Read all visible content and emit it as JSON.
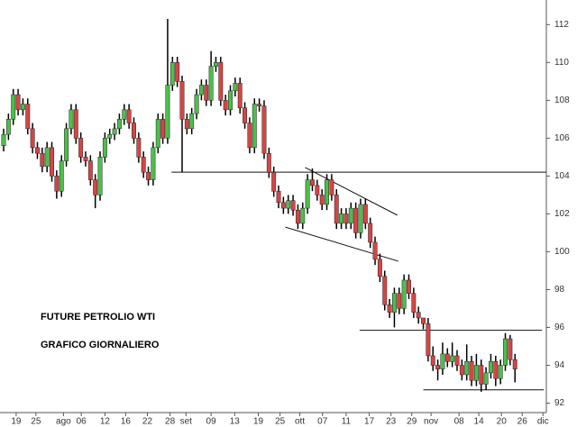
{
  "chart_data": {
    "type": "candlestick",
    "annotations": [
      "FUTURE PETROLIO WTI",
      "GRAFICO GIORNALIERO"
    ],
    "up_color": "#4cbf4c",
    "down_color": "#d64545",
    "xlim": [
      -0.75,
      112.5
    ],
    "ylim": [
      91.5,
      113.3
    ],
    "yticks": [
      92,
      94,
      96,
      98,
      100,
      102,
      104,
      106,
      108,
      110,
      112
    ],
    "xticks": [
      {
        "value": 2.6,
        "label": "19"
      },
      {
        "value": 6.7,
        "label": "25"
      },
      {
        "value": 12.4,
        "label": "ago"
      },
      {
        "value": 16.1,
        "label": "06"
      },
      {
        "value": 21,
        "label": "12"
      },
      {
        "value": 25.3,
        "label": "16"
      },
      {
        "value": 29.8,
        "label": "22"
      },
      {
        "value": 34.5,
        "label": "28"
      },
      {
        "value": 37.8,
        "label": "set"
      },
      {
        "value": 43,
        "label": "09"
      },
      {
        "value": 47.9,
        "label": "13"
      },
      {
        "value": 52.8,
        "label": "19"
      },
      {
        "value": 57.3,
        "label": "25"
      },
      {
        "value": 61.4,
        "label": "ott"
      },
      {
        "value": 66.1,
        "label": "07"
      },
      {
        "value": 71,
        "label": "11"
      },
      {
        "value": 75.8,
        "label": "17"
      },
      {
        "value": 80.3,
        "label": "23"
      },
      {
        "value": 84.6,
        "label": "29"
      },
      {
        "value": 88.6,
        "label": "nov"
      },
      {
        "value": 94.4,
        "label": "08"
      },
      {
        "value": 98.5,
        "label": "14"
      },
      {
        "value": 103.2,
        "label": "20"
      },
      {
        "value": 107.5,
        "label": "26"
      },
      {
        "value": 111.8,
        "label": "dic"
      }
    ],
    "open": [
      105.6,
      106.2,
      107,
      108.3,
      107.5,
      107.8,
      106.5,
      105.5,
      105.2,
      104.5,
      105.5,
      104,
      103.2,
      104.8,
      106.5,
      107.5,
      106,
      105,
      104.8,
      103.8,
      103,
      105,
      106,
      106.2,
      106.5,
      107,
      107.5,
      106.8,
      106,
      105,
      104.2,
      103.8,
      105.5,
      107,
      106,
      108.8,
      110,
      109,
      107,
      106.5,
      107.3,
      108.3,
      108.8,
      108,
      109.8,
      110,
      108,
      107.5,
      108.5,
      108.9,
      107.6,
      106.8,
      105.5,
      107.8,
      107.7,
      105.2,
      104.2,
      103.2,
      102.6,
      102.3,
      102.7,
      102.2,
      101.5,
      102.3,
      103.8,
      103.5,
      103,
      102.5,
      103.8,
      103,
      101.5,
      102,
      101.5,
      102.3,
      101,
      102.5,
      101.5,
      100.5,
      99.6,
      98.7,
      97.2,
      96.8,
      97.8,
      97,
      98.5,
      97.8,
      96.8,
      96.5,
      96.2,
      94.5,
      94,
      93.8,
      94.6,
      94.2,
      94.5,
      94,
      93.5,
      94.2,
      93.2,
      94,
      93,
      93.6,
      94.2,
      93.3,
      94,
      95.4,
      94.3
    ],
    "high": [
      106.5,
      107.3,
      108.6,
      108.6,
      108.1,
      108.1,
      106.8,
      105.8,
      105.5,
      105.8,
      105.8,
      104.3,
      105.1,
      106.8,
      107.8,
      107.8,
      106.3,
      105.3,
      105.1,
      104.1,
      105.3,
      106.3,
      106.5,
      106.8,
      107.3,
      107.8,
      107.8,
      107.1,
      106.3,
      105.3,
      104.5,
      105.8,
      107.3,
      107.3,
      112.3,
      110.3,
      110.3,
      109.3,
      107.3,
      107.6,
      108.6,
      109.1,
      109.1,
      110.6,
      110.3,
      110.3,
      108.3,
      108.8,
      109.2,
      109.2,
      107.9,
      107.1,
      108.1,
      108.1,
      108,
      105.5,
      104.5,
      103.5,
      102.9,
      103,
      103,
      102.5,
      102.6,
      104.1,
      104.4,
      103.8,
      103.3,
      104.1,
      104.1,
      103.3,
      102.3,
      102.3,
      102.6,
      102.6,
      102.8,
      102.8,
      101.8,
      100.8,
      99.9,
      99,
      97.5,
      98.1,
      98.1,
      98.8,
      98.8,
      98.1,
      97.1,
      96.5,
      96.5,
      95,
      94.3,
      95.2,
      94.9,
      95.2,
      94.8,
      94.3,
      95.1,
      94.5,
      94.6,
      94.3,
      93.9,
      94.6,
      94.5,
      94.3,
      95.7,
      95.6,
      94.6
    ],
    "low": [
      105.3,
      105.9,
      106.7,
      107.2,
      107.2,
      106.2,
      105.2,
      104.9,
      104.2,
      104.2,
      103.7,
      102.8,
      102.9,
      104.5,
      106.2,
      105.7,
      104.7,
      104.5,
      103.5,
      102.3,
      102.7,
      104.7,
      105.7,
      105.9,
      106.2,
      106.7,
      106.5,
      105.7,
      104.7,
      103.9,
      103.5,
      103.5,
      105.2,
      105.7,
      105.7,
      108.5,
      108.7,
      104.2,
      106.2,
      106.2,
      107,
      108,
      107.7,
      107.7,
      109.5,
      107.7,
      107.2,
      107.2,
      108.2,
      107.3,
      106.5,
      105.2,
      105.2,
      107.4,
      104.9,
      103.9,
      102.9,
      102.3,
      102,
      102,
      101.9,
      101.2,
      101.2,
      102,
      103.2,
      102.7,
      102.2,
      102.2,
      102.7,
      101.2,
      101.2,
      101.2,
      101.2,
      100.7,
      100.7,
      101.2,
      100.2,
      99.3,
      98.4,
      96.9,
      96.5,
      96,
      96.7,
      96.7,
      97.5,
      96.5,
      96.2,
      95.9,
      94.2,
      93.7,
      93.2,
      93.5,
      93.9,
      93.9,
      93.7,
      93.2,
      93.2,
      92.9,
      92.9,
      92.6,
      92.7,
      93.3,
      92.9,
      93,
      93.7,
      94,
      93.1
    ],
    "close": [
      106.2,
      107,
      108.3,
      107.5,
      107.8,
      106.5,
      105.5,
      105.2,
      104.5,
      105.5,
      104,
      103.2,
      104.8,
      106.5,
      107.5,
      106,
      105,
      104.8,
      103.8,
      103,
      105,
      106,
      106.2,
      106.5,
      107,
      107.5,
      106.8,
      106,
      105,
      104.2,
      103.8,
      105.5,
      107,
      106,
      108.8,
      110,
      109,
      107,
      106.5,
      107.3,
      108.3,
      108.8,
      108,
      109.8,
      110,
      108,
      107.5,
      108.5,
      108.9,
      107.6,
      106.8,
      105.5,
      107.8,
      107.7,
      105.2,
      104.2,
      103.2,
      102.6,
      102.3,
      102.7,
      102.2,
      101.5,
      102.3,
      103.8,
      103.5,
      103,
      102.5,
      103.8,
      103,
      101.5,
      102,
      101.5,
      102.3,
      101,
      102.5,
      101.5,
      100.5,
      99.6,
      98.7,
      97.2,
      96.8,
      97.8,
      97,
      98.5,
      97.8,
      96.8,
      96.5,
      96.2,
      94.5,
      94,
      93.8,
      94.6,
      94.2,
      94.5,
      94,
      93.5,
      94.2,
      93.2,
      94,
      93,
      93.6,
      94.2,
      93.3,
      94,
      95.4,
      94.3,
      93.8
    ],
    "lines": [
      {
        "x": [
          34.8,
          112.5
        ],
        "y": [
          104.2,
          104.2
        ]
      },
      {
        "x": [
          73.8,
          111.6
        ],
        "y": [
          95.85,
          95.85
        ]
      },
      {
        "x": [
          87,
          112
        ],
        "y": [
          92.7,
          92.7
        ]
      },
      {
        "x": [
          62.5,
          81.6
        ],
        "y": [
          104.45,
          101.93
        ]
      },
      {
        "x": [
          58.4,
          81.8
        ],
        "y": [
          101.3,
          99.5
        ]
      }
    ]
  }
}
